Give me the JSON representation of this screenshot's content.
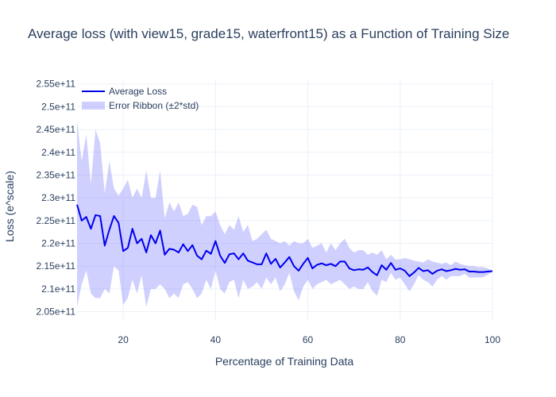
{
  "chart_data": {
    "type": "line",
    "title": "Average loss (with view15, grade15, waterfront15) as a Function of Training Size",
    "xlabel": "Percentage of Training Data",
    "ylabel": "Loss (e^scale)",
    "xlim": [
      10,
      100
    ],
    "ylim": [
      203000000000.0,
      256000000000.0
    ],
    "grid": true,
    "legend_position": "top-left",
    "x_ticks": [
      20,
      40,
      60,
      80,
      100
    ],
    "x_tick_labels": [
      "20",
      "40",
      "60",
      "80",
      "100"
    ],
    "y_ticks": [
      205000000000.0,
      210000000000.0,
      215000000000.0,
      220000000000.0,
      225000000000.0,
      230000000000.0,
      235000000000.0,
      240000000000.0,
      245000000000.0,
      250000000000.0,
      255000000000.0
    ],
    "y_tick_labels": [
      "2.05e+11",
      "2.1e+11",
      "2.15e+11",
      "2.2e+11",
      "2.25e+11",
      "2.3e+11",
      "2.35e+11",
      "2.4e+11",
      "2.45e+11",
      "2.5e+11",
      "2.55e+11"
    ],
    "series": [
      {
        "name": "Average Loss",
        "kind": "line",
        "color": "#0000ee",
        "x": [
          10,
          11,
          12,
          13,
          14,
          15,
          16,
          17,
          18,
          19,
          20,
          21,
          22,
          23,
          24,
          25,
          26,
          27,
          28,
          29,
          30,
          31,
          32,
          33,
          34,
          35,
          36,
          37,
          38,
          39,
          40,
          41,
          42,
          43,
          44,
          45,
          46,
          47,
          48,
          49,
          50,
          51,
          52,
          53,
          54,
          55,
          56,
          57,
          58,
          59,
          60,
          61,
          62,
          63,
          64,
          65,
          66,
          67,
          68,
          69,
          70,
          71,
          72,
          73,
          74,
          75,
          76,
          77,
          78,
          79,
          80,
          81,
          82,
          83,
          84,
          85,
          86,
          87,
          88,
          89,
          90,
          91,
          92,
          93,
          94,
          95,
          96,
          97,
          98,
          99,
          100
        ],
        "y": [
          228500000000.0,
          225000000000.0,
          225800000000.0,
          223200000000.0,
          226200000000.0,
          226000000000.0,
          219500000000.0,
          223000000000.0,
          226000000000.0,
          224500000000.0,
          218300000000.0,
          219000000000.0,
          223200000000.0,
          220000000000.0,
          221000000000.0,
          218000000000.0,
          221800000000.0,
          220000000000.0,
          222800000000.0,
          217500000000.0,
          218800000000.0,
          218600000000.0,
          218000000000.0,
          219800000000.0,
          218300000000.0,
          219600000000.0,
          217300000000.0,
          216500000000.0,
          218400000000.0,
          217700000000.0,
          220500000000.0,
          217300000000.0,
          215700000000.0,
          217600000000.0,
          217800000000.0,
          216500000000.0,
          217800000000.0,
          216200000000.0,
          215800000000.0,
          215400000000.0,
          215400000000.0,
          217800000000.0,
          215500000000.0,
          216600000000.0,
          214700000000.0,
          215800000000.0,
          217000000000.0,
          215000000000.0,
          214000000000.0,
          215500000000.0,
          216800000000.0,
          214500000000.0,
          215300000000.0,
          215600000000.0,
          215200000000.0,
          215500000000.0,
          215000000000.0,
          216000000000.0,
          216000000000.0,
          214500000000.0,
          214100000000.0,
          214300000000.0,
          214200000000.0,
          214700000000.0,
          213700000000.0,
          213000000000.0,
          215200000000.0,
          214200000000.0,
          215700000000.0,
          214200000000.0,
          214500000000.0,
          214000000000.0,
          212800000000.0,
          213600000000.0,
          214600000000.0,
          213900000000.0,
          214100000000.0,
          213300000000.0,
          214000000000.0,
          214300000000.0,
          213900000000.0,
          214100000000.0,
          214400000000.0,
          214200000000.0,
          214300000000.0,
          213800000000.0,
          213800000000.0,
          213700000000.0,
          213700000000.0,
          213800000000.0,
          213900000000.0
        ]
      },
      {
        "name": "Error Ribbon (±2*std)",
        "kind": "band",
        "color": "rgba(100,100,255,0.30)",
        "x": [
          10,
          11,
          12,
          13,
          14,
          15,
          16,
          17,
          18,
          19,
          20,
          21,
          22,
          23,
          24,
          25,
          26,
          27,
          28,
          29,
          30,
          31,
          32,
          33,
          34,
          35,
          36,
          37,
          38,
          39,
          40,
          41,
          42,
          43,
          44,
          45,
          46,
          47,
          48,
          49,
          50,
          51,
          52,
          53,
          54,
          55,
          56,
          57,
          58,
          59,
          60,
          61,
          62,
          63,
          64,
          65,
          66,
          67,
          68,
          69,
          70,
          71,
          72,
          73,
          74,
          75,
          76,
          77,
          78,
          79,
          80,
          81,
          82,
          83,
          84,
          85,
          86,
          87,
          88,
          89,
          90,
          91,
          92,
          93,
          94,
          95,
          96,
          97,
          98,
          99,
          100
        ],
        "upper": [
          247000000000.0,
          238000000000.0,
          244000000000.0,
          233000000000.0,
          245000000000.0,
          242000000000.0,
          231000000000.0,
          238000000000.0,
          232000000000.0,
          230500000000.0,
          232000000000.0,
          234000000000.0,
          230000000000.0,
          232000000000.0,
          230000000000.0,
          236000000000.0,
          230000000000.0,
          230000000000.0,
          236000000000.0,
          225500000000.0,
          229000000000.0,
          227000000000.0,
          229000000000.0,
          226000000000.0,
          226500000000.0,
          228500000000.0,
          228000000000.0,
          224000000000.0,
          226000000000.0,
          226000000000.0,
          227000000000.0,
          224000000000.0,
          222000000000.0,
          224000000000.0,
          223000000000.0,
          226000000000.0,
          222500000000.0,
          224000000000.0,
          220500000000.0,
          221000000000.0,
          222000000000.0,
          223000000000.0,
          221000000000.0,
          220500000000.0,
          220000000000.0,
          220500000000.0,
          219500000000.0,
          220500000000.0,
          220000000000.0,
          220000000000.0,
          221000000000.0,
          219000000000.0,
          219500000000.0,
          220000000000.0,
          218000000000.0,
          220000000000.0,
          218500000000.0,
          220000000000.0,
          221000000000.0,
          219000000000.0,
          218000000000.0,
          218500000000.0,
          218500000000.0,
          217500000000.0,
          218000000000.0,
          217500000000.0,
          218500000000.0,
          216500000000.0,
          217500000000.0,
          216500000000.0,
          216500000000.0,
          216800000000.0,
          216500000000.0,
          216200000000.0,
          216000000000.0,
          215800000000.0,
          216500000000.0,
          216000000000.0,
          215800000000.0,
          215500000000.0,
          215800000000.0,
          215200000000.0,
          216000000000.0,
          215500000000.0,
          215200000000.0,
          215000000000.0,
          215000000000.0,
          214800000000.0,
          214800000000.0,
          214500000000.0,
          214000000000.0
        ],
        "lower": [
          206000000000.0,
          211000000000.0,
          214000000000.0,
          209000000000.0,
          208000000000.0,
          208000000000.0,
          210000000000.0,
          209000000000.0,
          215000000000.0,
          214000000000.0,
          206500000000.0,
          208000000000.0,
          212000000000.0,
          209000000000.0,
          213000000000.0,
          206000000000.0,
          210000000000.0,
          210000000000.0,
          211000000000.0,
          210000000000.0,
          208000000000.0,
          209000000000.0,
          208000000000.0,
          211000000000.0,
          211500000000.0,
          210000000000.0,
          208000000000.0,
          209000000000.0,
          212000000000.0,
          210000000000.0,
          214000000000.0,
          210000000000.0,
          209000000000.0,
          211500000000.0,
          212000000000.0,
          208000000000.0,
          212000000000.0,
          210000000000.0,
          210500000000.0,
          211500000000.0,
          210000000000.0,
          212500000000.0,
          211000000000.0,
          212500000000.0,
          209500000000.0,
          211000000000.0,
          213500000000.0,
          209500000000.0,
          207500000000.0,
          210500000000.0,
          212000000000.0,
          210000000000.0,
          211000000000.0,
          211500000000.0,
          212000000000.0,
          211000000000.0,
          211500000000.0,
          212000000000.0,
          211000000000.0,
          210000000000.0,
          210500000000.0,
          210000000000.0,
          210000000000.0,
          211500000000.0,
          209500000000.0,
          208500000000.0,
          212000000000.0,
          211500000000.0,
          213500000000.0,
          212000000000.0,
          212500000000.0,
          211000000000.0,
          209500000000.0,
          211000000000.0,
          213000000000.0,
          212000000000.0,
          211500000000.0,
          210500000000.0,
          212000000000.0,
          212800000000.0,
          212000000000.0,
          212800000000.0,
          212800000000.0,
          212800000000.0,
          213300000000.0,
          212500000000.0,
          212500000000.0,
          212500000000.0,
          212600000000.0,
          213100000000.0,
          213800000000.0
        ]
      }
    ]
  }
}
